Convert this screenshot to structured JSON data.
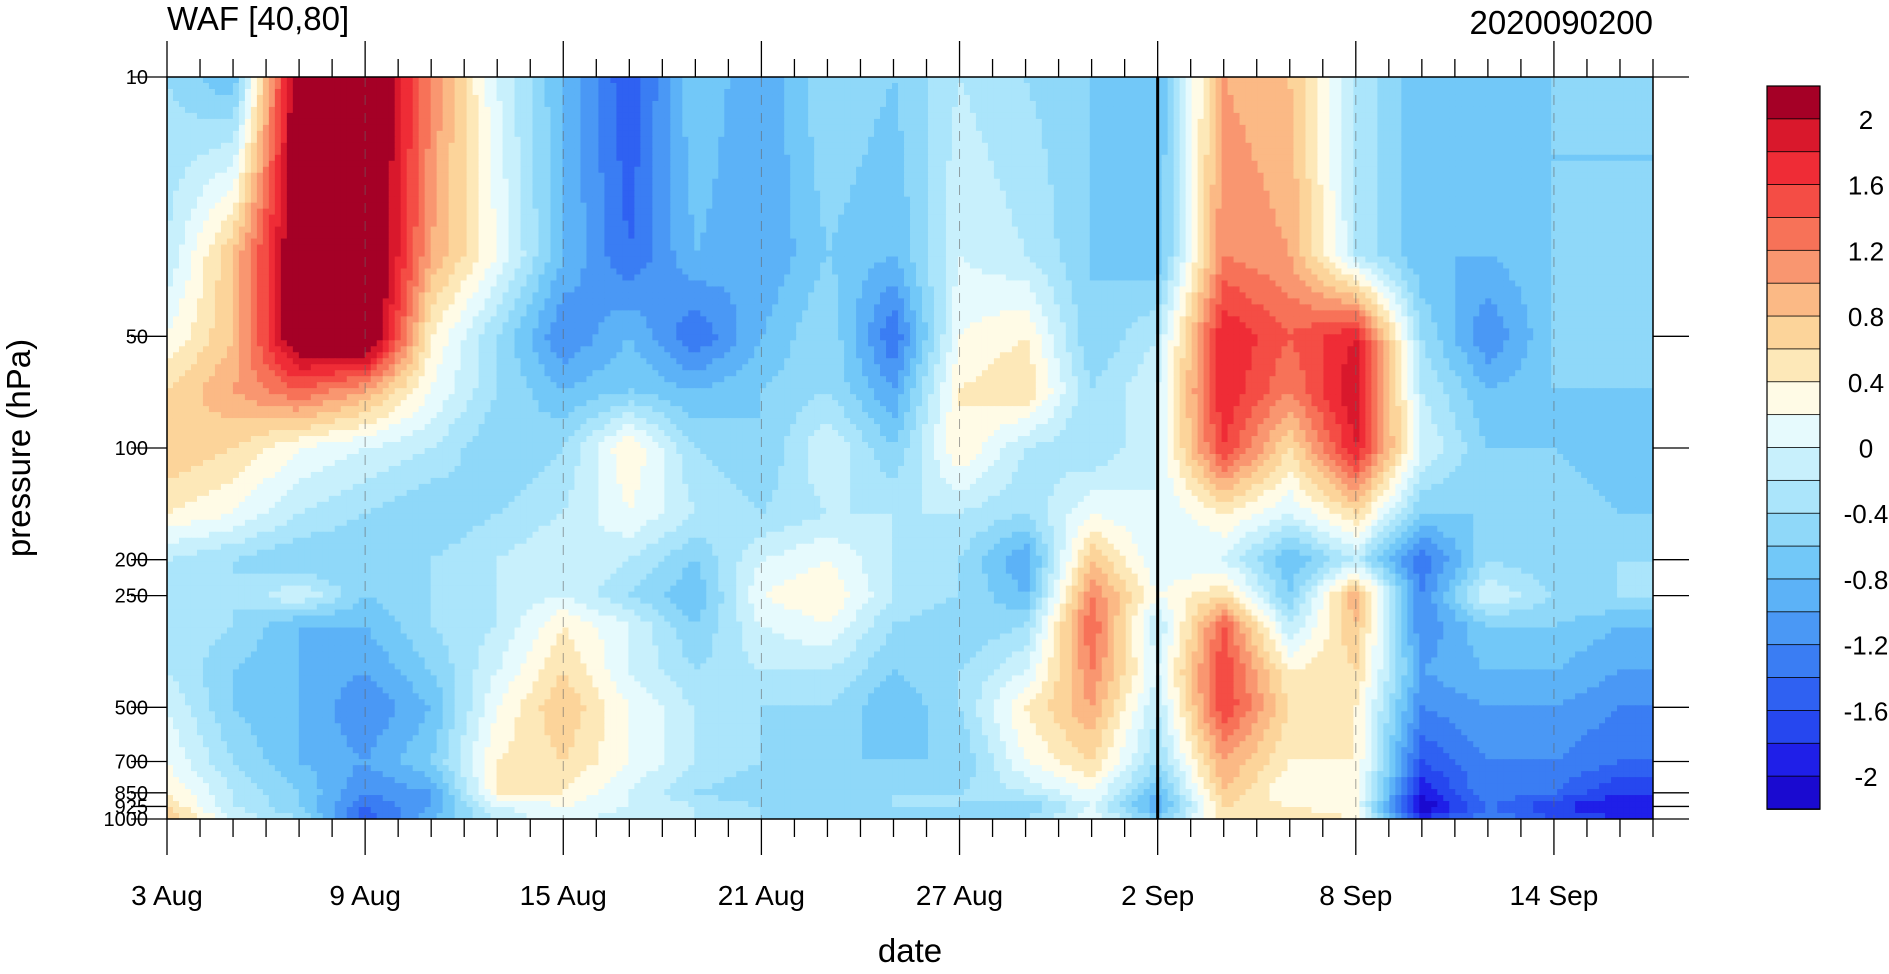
{
  "chart_data": {
    "type": "heatmap",
    "title_left": "WAF [40,80]",
    "title_right": "2020090200",
    "xlabel": "date",
    "ylabel": "pressure (hPa)",
    "x_tick_labels": [
      "3 Aug",
      "9 Aug",
      "15 Aug",
      "21 Aug",
      "27 Aug",
      "2 Sep",
      "8 Sep",
      "14 Sep"
    ],
    "x_tick_days": [
      0,
      6,
      12,
      18,
      24,
      30,
      36,
      42
    ],
    "x_range_days": [
      0,
      45
    ],
    "y_scale": "log",
    "y_range": [
      1000,
      10
    ],
    "y_ticks": [
      10,
      50,
      100,
      200,
      250,
      500,
      700,
      850,
      925,
      1000
    ],
    "y_tick_labels": [
      "10",
      "50",
      "100",
      "200",
      "250",
      "500",
      "700",
      "850",
      "925",
      "1000"
    ],
    "current_date_day": 30,
    "colorbar": {
      "levels": [
        -2.2,
        -2,
        -1.8,
        -1.6,
        -1.4,
        -1.2,
        -1,
        -0.8,
        -0.6,
        -0.4,
        -0.2,
        0,
        0.2,
        0.4,
        0.6,
        0.8,
        1,
        1.2,
        1.4,
        1.6,
        1.8,
        2,
        2.2
      ],
      "colors": [
        "#1a0ad0",
        "#1f1fe8",
        "#2647ef",
        "#2f61f2",
        "#3a7df3",
        "#4a98f5",
        "#5cb2f7",
        "#72c8f8",
        "#8fd8f9",
        "#abe5fb",
        "#c8f0fc",
        "#e6fafd",
        "#fffbe6",
        "#fde8b8",
        "#fcd49a",
        "#fbb985",
        "#f99670",
        "#f77258",
        "#f44d45",
        "#ef2c36",
        "#d9182c",
        "#a50026"
      ],
      "tick_labels": [
        "2",
        "1.6",
        "1.2",
        "0.8",
        "0.4",
        "0",
        "-0.4",
        "-0.8",
        "-1.2",
        "-1.6",
        "-2"
      ]
    },
    "grid_days": [
      0,
      2,
      4,
      6,
      8,
      10,
      12,
      14,
      16,
      18,
      20,
      22,
      24,
      26,
      28,
      30,
      32,
      34,
      36,
      38,
      40,
      42,
      44
    ],
    "grid_levels": [
      10,
      30,
      50,
      70,
      100,
      150,
      200,
      250,
      300,
      400,
      500,
      700,
      850,
      925,
      1000
    ],
    "values": [
      [
        -0.4,
        -0.8,
        2.4,
        2.6,
        1.2,
        0.0,
        -0.8,
        -1.6,
        -0.6,
        -1.0,
        -0.4,
        -0.6,
        -0.2,
        -0.4,
        -0.6,
        -0.8,
        1.0,
        0.8,
        -0.2,
        -0.8,
        -0.6,
        -0.6,
        -0.6
      ],
      [
        -0.2,
        0.8,
        2.4,
        2.6,
        1.0,
        0.2,
        -0.8,
        -1.4,
        -0.8,
        -1.0,
        -0.6,
        -0.8,
        0.0,
        -0.2,
        -0.6,
        -0.8,
        1.2,
        1.0,
        -0.2,
        -0.8,
        -0.8,
        -0.6,
        -0.6
      ],
      [
        0.2,
        0.8,
        2.4,
        2.6,
        0.4,
        -0.4,
        -1.2,
        -0.8,
        -1.4,
        -0.8,
        -0.4,
        -1.4,
        0.2,
        0.4,
        -0.6,
        -0.2,
        1.8,
        1.4,
        1.8,
        -0.4,
        -1.2,
        -0.6,
        -0.4
      ],
      [
        0.6,
        1.0,
        1.4,
        1.0,
        0.2,
        -0.4,
        -0.8,
        -0.6,
        -0.8,
        -0.6,
        -0.4,
        -1.0,
        0.4,
        0.6,
        -0.4,
        0.0,
        1.8,
        1.2,
        2.0,
        -0.2,
        -0.8,
        -0.6,
        -0.6
      ],
      [
        0.8,
        0.6,
        0.2,
        0.0,
        -0.2,
        -0.6,
        -0.4,
        0.4,
        -0.4,
        -0.6,
        0.0,
        -0.6,
        0.4,
        -0.2,
        -0.4,
        0.0,
        1.6,
        0.6,
        1.8,
        0.0,
        -0.6,
        -0.6,
        -0.8
      ],
      [
        0.4,
        0.2,
        -0.2,
        -0.4,
        -0.6,
        -0.4,
        -0.2,
        0.2,
        -0.2,
        -0.4,
        -0.2,
        -0.2,
        -0.2,
        -0.4,
        0.2,
        0.0,
        0.4,
        0.0,
        0.6,
        -0.6,
        -0.6,
        -0.4,
        -0.6
      ],
      [
        -0.2,
        -0.4,
        -0.6,
        -0.6,
        -0.4,
        -0.2,
        0.0,
        -0.2,
        -0.6,
        0.0,
        0.2,
        -0.2,
        -0.4,
        -1.0,
        0.8,
        0.0,
        0.0,
        -0.8,
        -0.2,
        -1.4,
        -0.4,
        -0.6,
        -0.4
      ],
      [
        -0.2,
        -0.4,
        0.0,
        -0.6,
        -0.4,
        -0.2,
        0.0,
        -0.4,
        -0.8,
        0.2,
        0.4,
        -0.2,
        -0.4,
        -0.8,
        1.2,
        0.2,
        0.6,
        -0.6,
        1.0,
        -1.2,
        0.0,
        -0.4,
        -0.4
      ],
      [
        -0.2,
        -0.4,
        -0.8,
        -0.8,
        -0.4,
        -0.2,
        0.4,
        0.0,
        -0.6,
        0.0,
        0.2,
        -0.4,
        -0.6,
        -0.4,
        1.4,
        -0.2,
        1.4,
        -0.2,
        0.8,
        -1.2,
        -0.6,
        -0.6,
        -0.8
      ],
      [
        -0.2,
        -0.6,
        -0.8,
        -1.0,
        -0.6,
        0.0,
        0.6,
        0.0,
        -0.4,
        -0.2,
        -0.2,
        -0.6,
        -0.4,
        0.0,
        1.2,
        0.0,
        1.6,
        0.4,
        0.6,
        -1.0,
        -0.8,
        -0.8,
        -1.0
      ],
      [
        0.0,
        -0.6,
        -0.8,
        -1.2,
        -0.8,
        0.2,
        0.8,
        0.2,
        -0.2,
        -0.4,
        -0.4,
        -0.8,
        -0.4,
        0.4,
        1.0,
        -0.2,
        1.6,
        0.6,
        0.4,
        -1.2,
        -1.0,
        -1.0,
        -1.2
      ],
      [
        0.2,
        -0.4,
        -0.8,
        -1.0,
        -0.6,
        0.4,
        0.6,
        0.2,
        -0.2,
        -0.4,
        -0.6,
        -0.6,
        -0.6,
        0.2,
        0.6,
        -0.4,
        1.0,
        0.4,
        0.4,
        -1.6,
        -1.2,
        -1.2,
        -1.4
      ],
      [
        0.4,
        -0.2,
        -0.6,
        -1.2,
        -1.0,
        0.4,
        0.4,
        0.0,
        -0.4,
        -0.6,
        -0.6,
        -0.4,
        -0.4,
        -0.2,
        0.2,
        -0.8,
        0.8,
        0.2,
        0.4,
        -2.0,
        -1.2,
        -1.4,
        -1.8
      ],
      [
        0.6,
        -0.2,
        -0.6,
        -1.4,
        -1.0,
        0.0,
        0.2,
        0.0,
        -0.2,
        -0.4,
        -0.6,
        -0.4,
        -0.4,
        -0.6,
        0.0,
        -1.0,
        0.6,
        0.4,
        0.2,
        -2.2,
        -1.4,
        -1.8,
        -2.0
      ],
      [
        0.8,
        0.0,
        -0.4,
        -1.6,
        -0.8,
        -0.2,
        0.2,
        -0.2,
        -0.2,
        -0.4,
        -0.6,
        -0.4,
        -0.6,
        -0.4,
        0.2,
        -0.6,
        0.6,
        0.6,
        0.4,
        -1.8,
        -1.2,
        -1.6,
        -1.8
      ]
    ]
  }
}
